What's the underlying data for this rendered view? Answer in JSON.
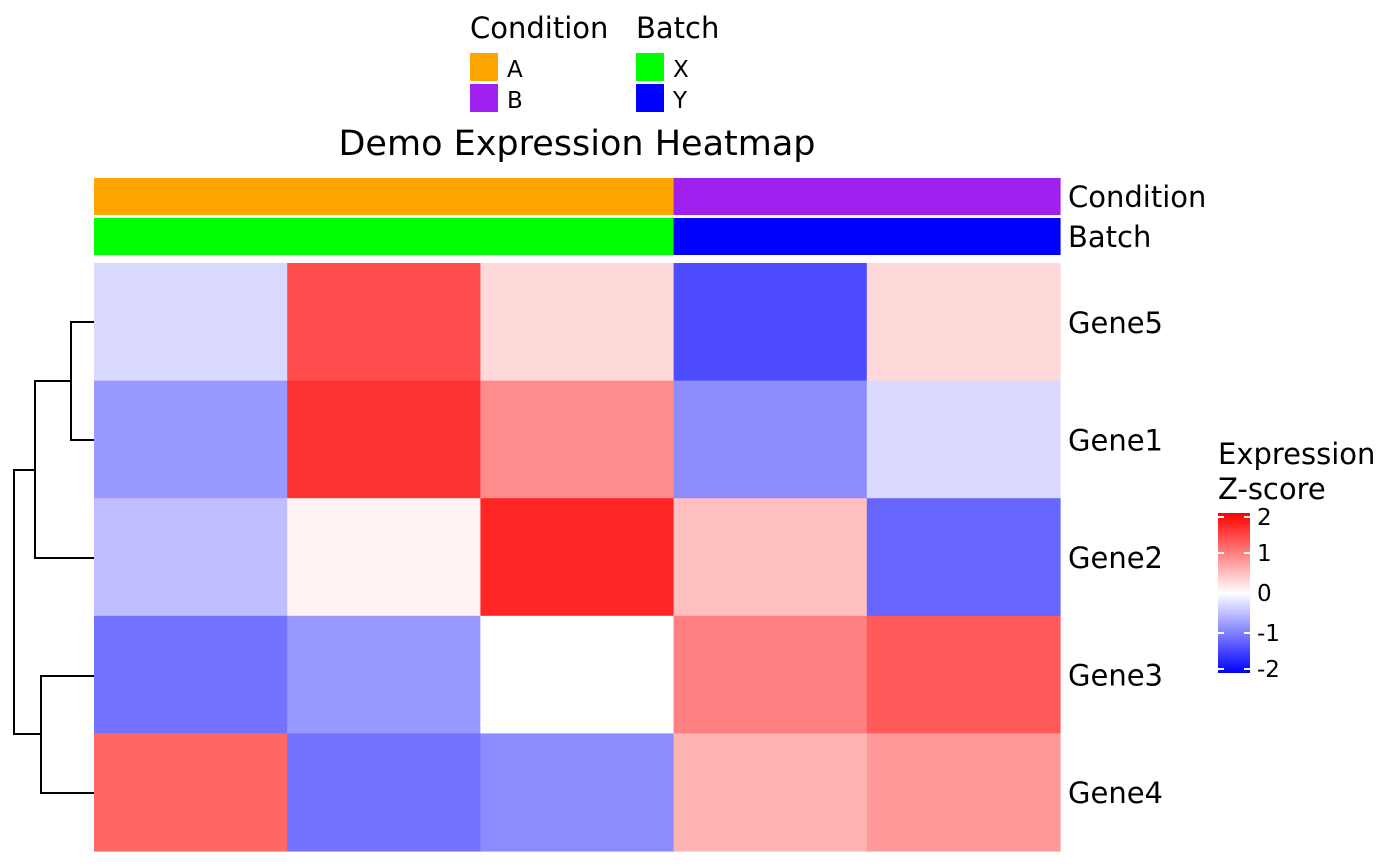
{
  "chart_data": {
    "type": "heatmap",
    "title": "Demo Expression Heatmap",
    "rows": [
      "Gene5",
      "Gene1",
      "Gene2",
      "Gene3",
      "Gene4"
    ],
    "columns": [
      "",
      "",
      "",
      "",
      ""
    ],
    "values": [
      [
        -0.3,
        1.4,
        0.3,
        -1.4,
        0.3
      ],
      [
        -0.8,
        1.6,
        0.9,
        -0.9,
        -0.3
      ],
      [
        -0.5,
        0.1,
        1.7,
        0.5,
        -1.2
      ],
      [
        -1.1,
        -0.8,
        0.0,
        1.0,
        1.3
      ],
      [
        1.2,
        -1.1,
        -0.9,
        0.6,
        0.8
      ]
    ],
    "annotations": [
      {
        "name": "Condition",
        "values": [
          "A",
          "A",
          "A",
          "B",
          "B"
        ]
      },
      {
        "name": "Batch",
        "values": [
          "X",
          "X",
          "X",
          "Y",
          "Y"
        ]
      }
    ],
    "annotation_legends": [
      {
        "title": "Condition",
        "items": [
          {
            "label": "A",
            "color": "#FFA500"
          },
          {
            "label": "B",
            "color": "#A020F0"
          }
        ]
      },
      {
        "title": "Batch",
        "items": [
          {
            "label": "X",
            "color": "#00FF00"
          },
          {
            "label": "Y",
            "color": "#0000FF"
          }
        ]
      }
    ],
    "color_scale": {
      "title": "Expression\nZ-score",
      "range": [
        -2,
        2
      ],
      "ticks": [
        2,
        1,
        0,
        -1,
        -2
      ],
      "low_color": "#0000FF",
      "mid_color": "#FFFFFF",
      "high_color": "#FF0000"
    },
    "row_dendrogram": "((Gene5,Gene1),Gene2),(Gene3,Gene4)",
    "legend_position": "top, right"
  }
}
